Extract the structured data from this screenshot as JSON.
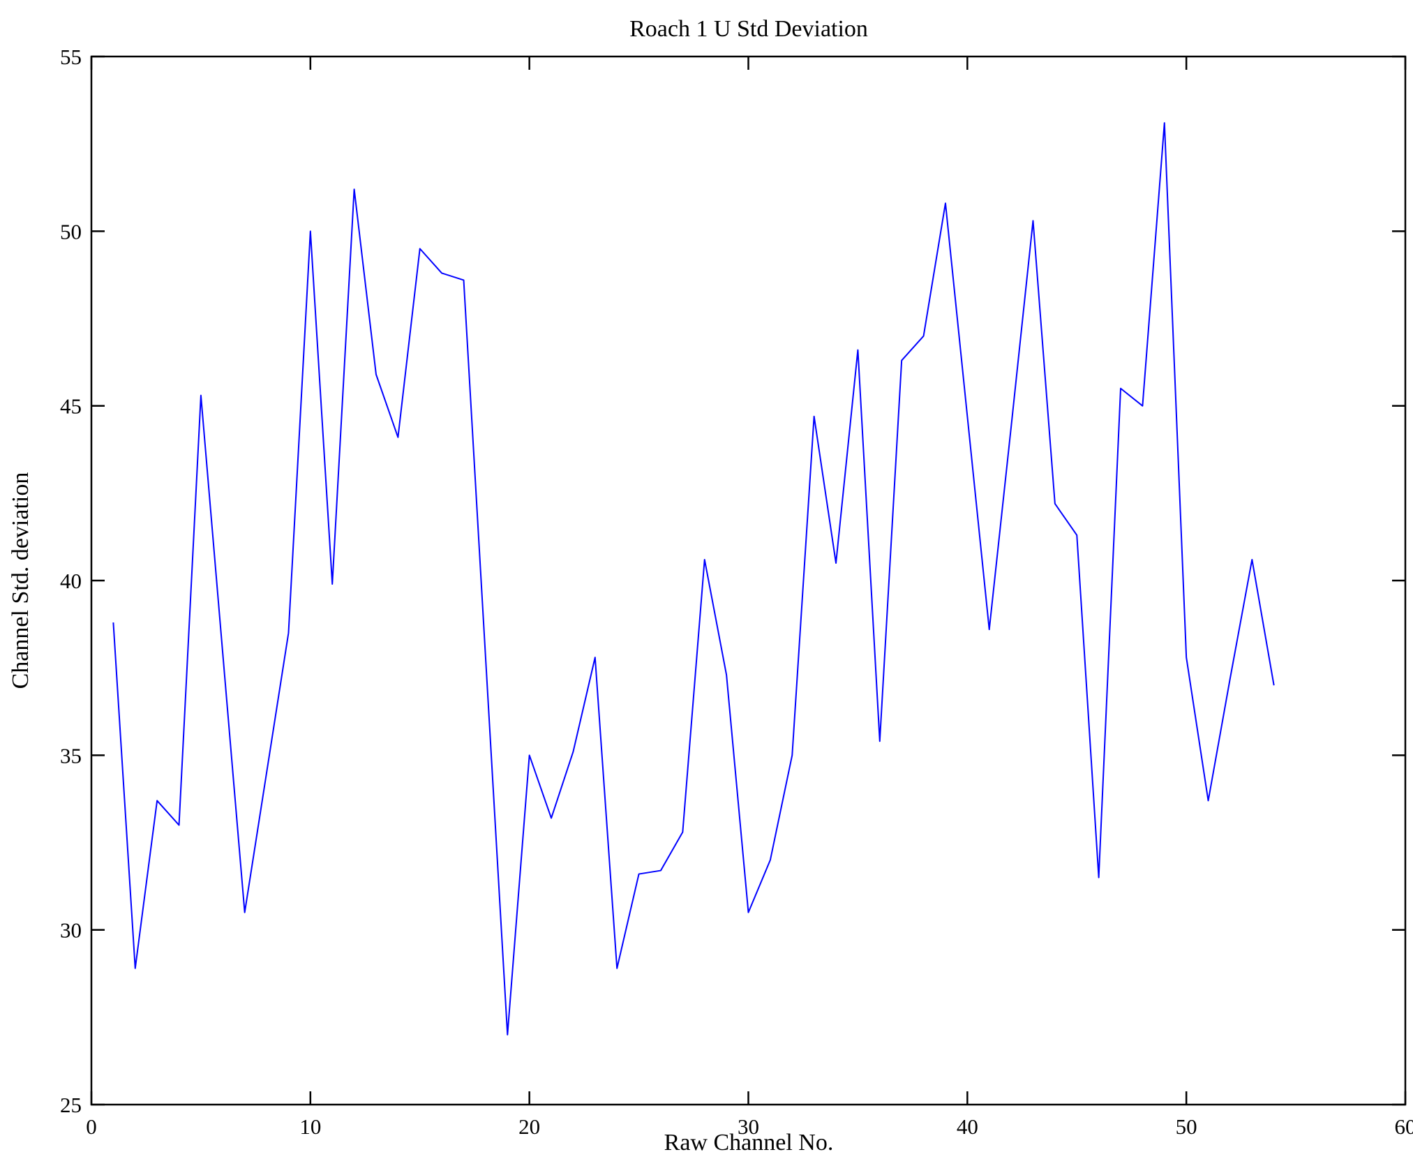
{
  "figure": {
    "background": "#ffffff"
  },
  "chart_data": {
    "type": "line",
    "title": "Roach 1 U Std Deviation",
    "xlabel": "Raw Channel No.",
    "ylabel": "Channel Std. deviation",
    "xlim": [
      0,
      60
    ],
    "ylim": [
      25,
      55
    ],
    "xticks": [
      0,
      10,
      20,
      30,
      40,
      50,
      60
    ],
    "yticks": [
      25,
      30,
      35,
      40,
      45,
      50,
      55
    ],
    "grid": false,
    "legend": "none",
    "line_color": "#0000ff",
    "axis_color": "#000000",
    "series_name": "Channel Std. deviation",
    "x": [
      1,
      2,
      3,
      4,
      5,
      6,
      7,
      8,
      9,
      10,
      11,
      12,
      13,
      14,
      15,
      16,
      17,
      18,
      19,
      20,
      21,
      22,
      23,
      24,
      25,
      26,
      27,
      28,
      29,
      30,
      31,
      32,
      33,
      34,
      35,
      36,
      37,
      38,
      39,
      40,
      41,
      42,
      43,
      44,
      45,
      46,
      47,
      48,
      49,
      50,
      51,
      52,
      53,
      54
    ],
    "values": [
      38.8,
      28.9,
      33.7,
      33.0,
      45.3,
      37.9,
      30.5,
      34.5,
      38.5,
      50.0,
      39.9,
      51.2,
      45.9,
      44.1,
      49.5,
      48.8,
      48.6,
      37.8,
      27.0,
      35.0,
      33.2,
      35.1,
      37.8,
      28.9,
      31.6,
      31.7,
      32.8,
      40.6,
      37.3,
      30.5,
      32.0,
      35.0,
      44.7,
      40.5,
      46.6,
      35.4,
      46.3,
      47.0,
      50.8,
      44.7,
      38.6,
      44.4,
      50.3,
      42.2,
      41.3,
      31.5,
      45.5,
      45.0,
      53.1,
      37.8,
      33.7,
      37.2,
      40.6,
      37.0
    ]
  }
}
